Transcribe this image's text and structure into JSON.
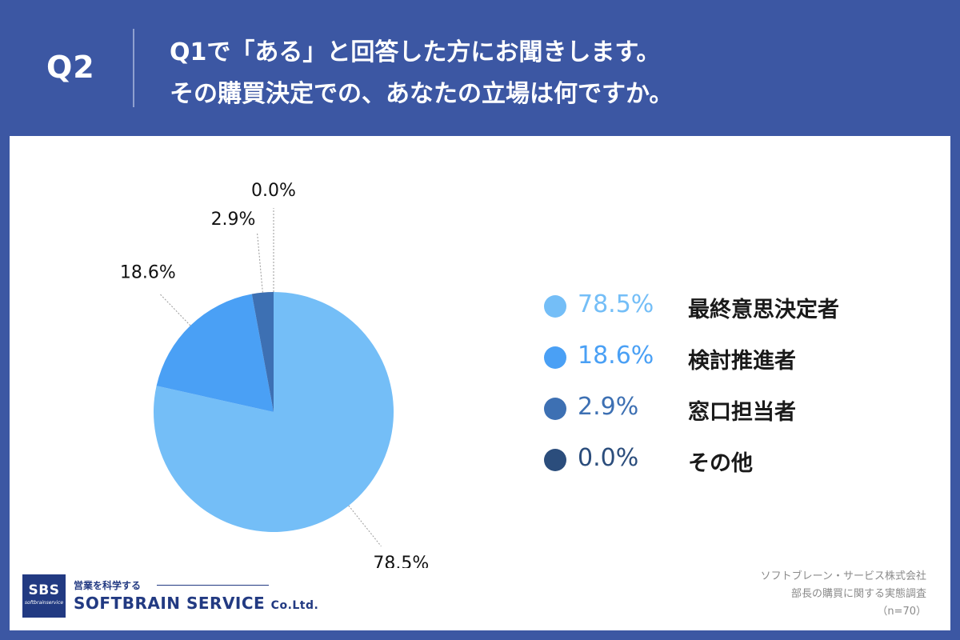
{
  "header": {
    "question_number": "Q2",
    "question_line1": "Q1で「ある」と回答した方にお聞きします。",
    "question_line2": "その購買決定での、あなたの立場は何ですか。"
  },
  "chart_data": {
    "type": "pie",
    "title": "",
    "unit": "%",
    "slices": [
      {
        "name": "最終意思決定者",
        "value": 78.5,
        "label": "78.5%",
        "color": "#74bef7"
      },
      {
        "name": "検討推進者",
        "value": 18.6,
        "label": "18.6%",
        "color": "#4aa0f5"
      },
      {
        "name": "窓口担当者",
        "value": 2.9,
        "label": "2.9%",
        "color": "#3d70b3"
      },
      {
        "name": "その他",
        "value": 0.0,
        "label": "0.0%",
        "color": "#2b4d7c"
      }
    ],
    "legend_position": "right"
  },
  "legend": {
    "items": [
      {
        "value": "78.5%",
        "label": "最終意思決定者",
        "color": "#74bef7"
      },
      {
        "value": "18.6%",
        "label": "検討推進者",
        "color": "#4aa0f5"
      },
      {
        "value": "2.9%",
        "label": "窓口担当者",
        "color": "#3d70b3"
      },
      {
        "value": "0.0%",
        "label": "その他",
        "color": "#2b4d7c"
      }
    ]
  },
  "logo": {
    "box_text": "SBS",
    "box_subtext": "softbrainservice",
    "tagline": "営業を科学する",
    "company": "SOFTBRAIN SERVICE",
    "company_suffix": "Co.Ltd."
  },
  "source": {
    "line1": "ソフトブレーン・サービス株式会社",
    "line2": "部長の購買に関する実態調査",
    "line3": "（n=70）"
  },
  "colors": {
    "background": "#3c57a3",
    "panel": "#ffffff",
    "header_text": "#ffffff",
    "logo": "#223a82"
  }
}
